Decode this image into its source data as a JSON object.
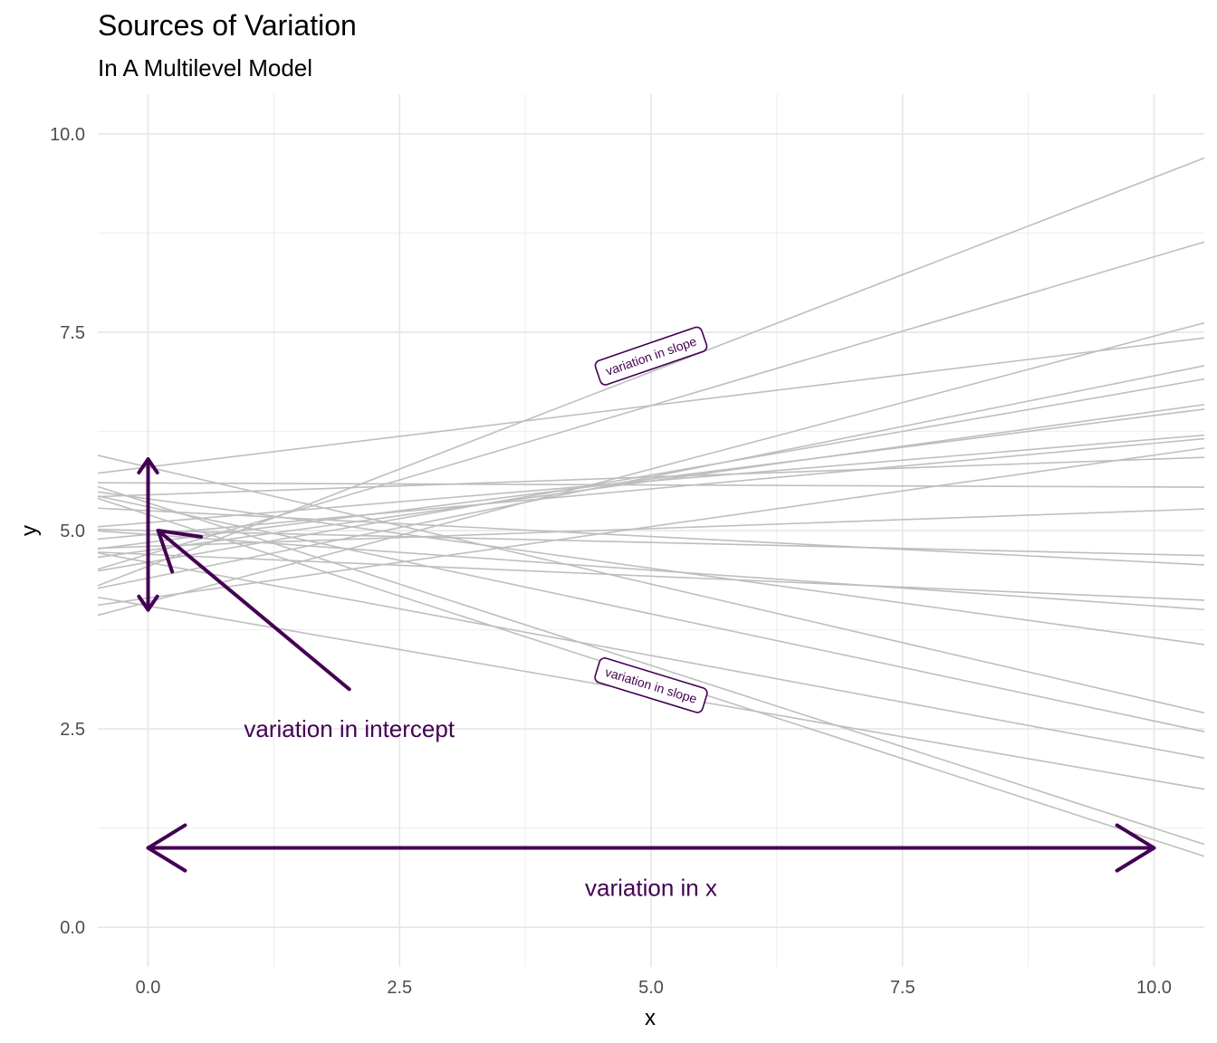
{
  "chart_data": {
    "type": "line",
    "title": "Sources of Variation",
    "subtitle": "In A Multilevel Model",
    "xlabel": "x",
    "ylabel": "y",
    "xlim": [
      -0.5,
      10.5
    ],
    "ylim": [
      -0.5,
      10.5
    ],
    "x_ticks": [
      0,
      2.5,
      5,
      7.5,
      10
    ],
    "x_tick_labels": [
      "0.0",
      "2.5",
      "5.0",
      "7.5",
      "10.0"
    ],
    "y_ticks": [
      0,
      2.5,
      5,
      7.5,
      10
    ],
    "y_tick_labels": [
      "0.0",
      "2.5",
      "5.0",
      "7.5",
      "10.0"
    ],
    "grid": true,
    "line_color": "#bebebe",
    "annotation_color": "#440154",
    "lines": [
      {
        "y_start": 4.55,
        "y_end": 9.45
      },
      {
        "y_start": 4.7,
        "y_end": 8.45
      },
      {
        "y_start": 4.1,
        "y_end": 7.45
      },
      {
        "y_start": 5.8,
        "y_end": 7.35
      },
      {
        "y_start": 4.4,
        "y_end": 6.95
      },
      {
        "y_start": 4.6,
        "y_end": 6.8
      },
      {
        "y_start": 4.75,
        "y_end": 6.5
      },
      {
        "y_start": 4.85,
        "y_end": 6.45
      },
      {
        "y_start": 5.1,
        "y_end": 6.15
      },
      {
        "y_start": 4.95,
        "y_end": 6.1
      },
      {
        "y_start": 4.15,
        "y_end": 5.95
      },
      {
        "y_start": 5.45,
        "y_end": 5.9
      },
      {
        "y_start": 5.6,
        "y_end": 5.55
      },
      {
        "y_start": 4.8,
        "y_end": 5.25
      },
      {
        "y_start": 5.0,
        "y_end": 4.7
      },
      {
        "y_start": 5.25,
        "y_end": 4.6
      },
      {
        "y_start": 4.7,
        "y_end": 4.15
      },
      {
        "y_start": 4.95,
        "y_end": 4.05
      },
      {
        "y_start": 5.4,
        "y_end": 3.65
      },
      {
        "y_start": 5.8,
        "y_end": 2.85
      },
      {
        "y_start": 5.3,
        "y_end": 2.6
      },
      {
        "y_start": 4.6,
        "y_end": 2.25
      },
      {
        "y_start": 4.05,
        "y_end": 1.85
      },
      {
        "y_start": 5.35,
        "y_end": 1.25
      },
      {
        "y_start": 5.2,
        "y_end": 1.1
      }
    ],
    "annotations": {
      "intercept_label": {
        "text": "variation in intercept",
        "x": 2.0,
        "y": 2.5
      },
      "x_label": {
        "text": "variation in x",
        "x": 5.0,
        "y": 0.5
      },
      "slope_label_up": {
        "text": "variation in slope",
        "x": 5.0,
        "y": 7.2
      },
      "slope_label_down": {
        "text": "variation in slope",
        "x": 5.0,
        "y": 3.05
      }
    },
    "arrows": {
      "intercept_vertical": {
        "x": 0,
        "y_from": 4.0,
        "y_to": 5.9
      },
      "intercept_diagonal": {
        "x_from": 2.0,
        "y_from": 3.0,
        "x_to": 0.1,
        "y_to": 5.0
      },
      "x_horizontal": {
        "y": 1.0,
        "x_from": 0,
        "x_to": 10
      }
    }
  }
}
